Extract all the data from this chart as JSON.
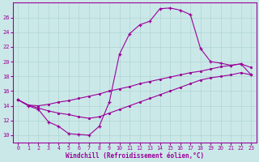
{
  "xlabel": "Windchill (Refroidissement éolien,°C)",
  "background_color": "#cbe8e8",
  "line_color": "#990099",
  "grid_color": "#b0d4d4",
  "xlim": [
    -0.5,
    23.5
  ],
  "ylim": [
    9.0,
    28.0
  ],
  "xticks": [
    0,
    1,
    2,
    3,
    4,
    5,
    6,
    7,
    8,
    9,
    10,
    11,
    12,
    13,
    14,
    15,
    16,
    17,
    18,
    19,
    20,
    21,
    22,
    23
  ],
  "yticks": [
    10,
    12,
    14,
    16,
    18,
    20,
    22,
    24,
    26
  ],
  "curve1_x": [
    0,
    1,
    2,
    3,
    4,
    5,
    6,
    7,
    8,
    9,
    10,
    11,
    12,
    13,
    14,
    15,
    16,
    17,
    18,
    19,
    20,
    21,
    22,
    23
  ],
  "curve1_y": [
    14.8,
    14.0,
    13.5,
    11.8,
    11.2,
    10.2,
    10.1,
    10.0,
    11.2,
    14.5,
    21.0,
    23.8,
    25.0,
    25.5,
    27.2,
    27.3,
    27.0,
    26.4,
    21.8,
    20.0,
    19.8,
    19.5,
    19.7,
    18.2
  ],
  "curve2_x": [
    0,
    1,
    2,
    3,
    4,
    5,
    6,
    7,
    8,
    9,
    10,
    11,
    12,
    13,
    14,
    15,
    16,
    17,
    18,
    19,
    20,
    21,
    22,
    23
  ],
  "curve2_y": [
    14.8,
    14.1,
    14.0,
    14.2,
    14.5,
    14.7,
    15.0,
    15.3,
    15.6,
    16.0,
    16.3,
    16.6,
    17.0,
    17.3,
    17.6,
    17.9,
    18.2,
    18.5,
    18.7,
    19.0,
    19.3,
    19.5,
    19.7,
    19.2
  ],
  "curve3_x": [
    0,
    1,
    2,
    3,
    4,
    5,
    6,
    7,
    8,
    9,
    10,
    11,
    12,
    13,
    14,
    15,
    16,
    17,
    18,
    19,
    20,
    21,
    22,
    23
  ],
  "curve3_y": [
    14.8,
    14.1,
    13.7,
    13.3,
    13.0,
    12.8,
    12.5,
    12.3,
    12.5,
    13.0,
    13.5,
    14.0,
    14.5,
    15.0,
    15.5,
    16.0,
    16.5,
    17.0,
    17.5,
    17.8,
    18.0,
    18.2,
    18.5,
    18.2
  ]
}
